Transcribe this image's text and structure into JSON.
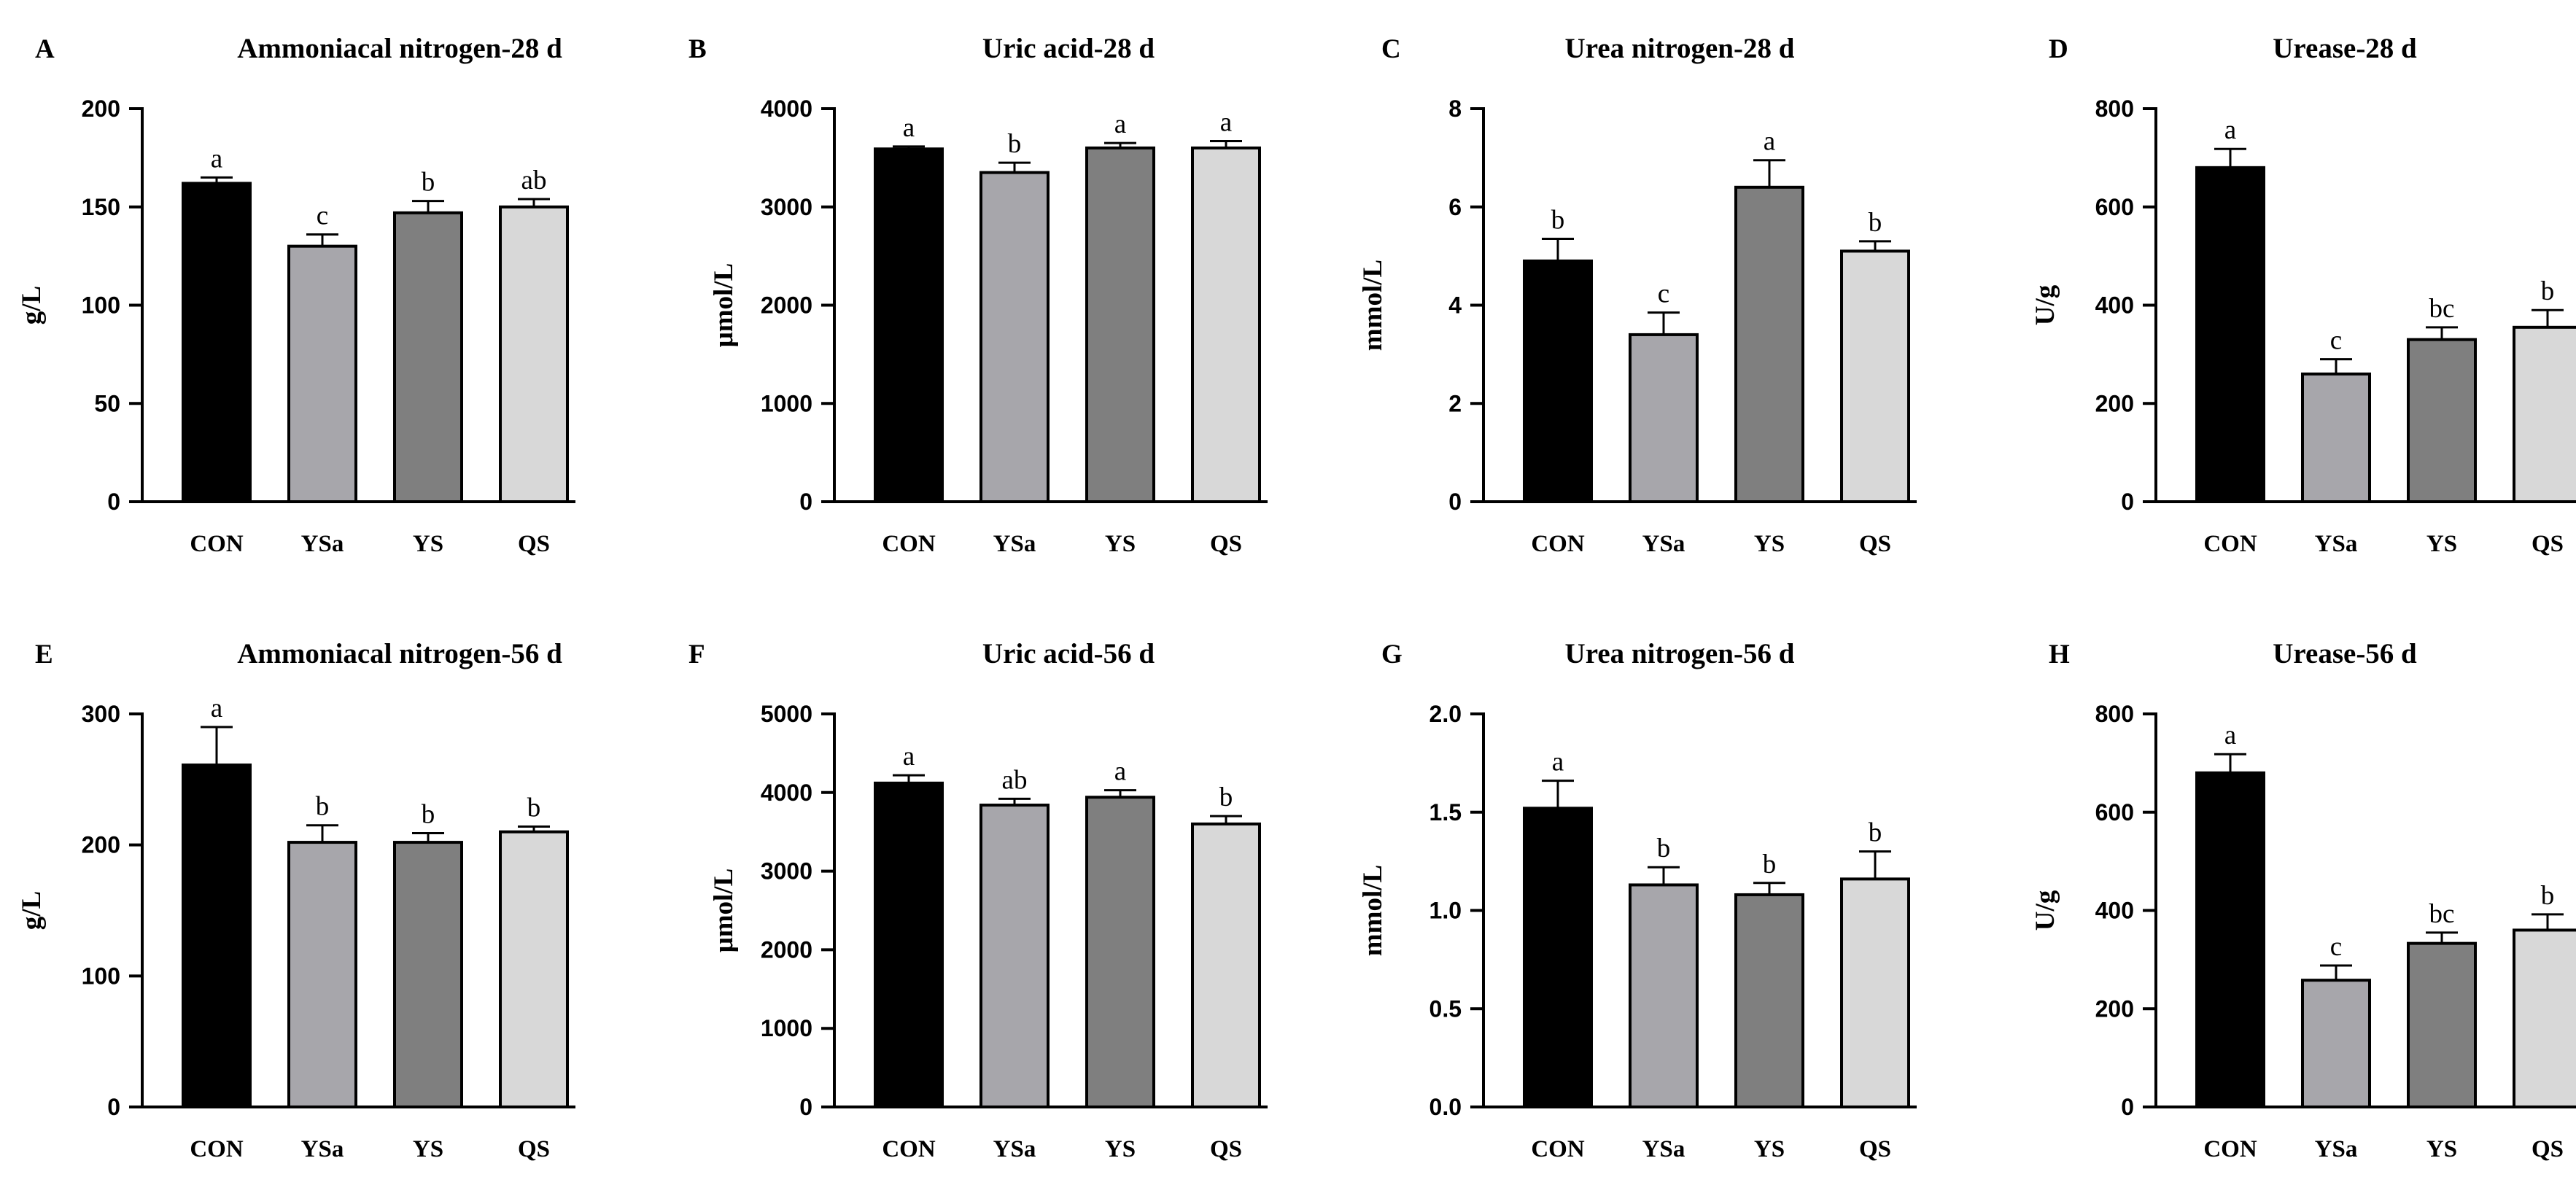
{
  "colors": {
    "CON": "#000000",
    "YSa": "#a7a6ab",
    "YS": "#7f7f7f",
    "QS": "#d8d8d8"
  },
  "chart_data": [
    {
      "type": "bar",
      "letter": "A",
      "title": "Ammoniacal nitrogen-28 d",
      "xlabel": "",
      "ylabel": "g/L",
      "categories": [
        "CON",
        "YSa",
        "YS",
        "QS"
      ],
      "values": [
        162,
        130,
        147,
        150
      ],
      "errors": [
        3,
        6,
        6,
        4
      ],
      "significance": [
        "a",
        "c",
        "b",
        "ab"
      ],
      "ylim": [
        0,
        200
      ],
      "yticks": [
        0,
        50,
        100,
        150,
        200
      ],
      "ytick_labels": [
        "0",
        "50",
        "100",
        "150",
        "200"
      ]
    },
    {
      "type": "bar",
      "letter": "B",
      "title": "Uric acid-28 d",
      "xlabel": "",
      "ylabel": "μmol/L",
      "categories": [
        "CON",
        "YSa",
        "YS",
        "QS"
      ],
      "values": [
        3590,
        3350,
        3600,
        3600
      ],
      "errors": [
        25,
        100,
        50,
        70
      ],
      "significance": [
        "a",
        "b",
        "a",
        "a"
      ],
      "ylim": [
        0,
        4000
      ],
      "yticks": [
        0,
        1000,
        2000,
        3000,
        4000
      ],
      "ytick_labels": [
        "0",
        "1000",
        "2000",
        "3000",
        "4000"
      ]
    },
    {
      "type": "bar",
      "letter": "C",
      "title": "Urea nitrogen-28 d",
      "xlabel": "",
      "ylabel": "mmol/L",
      "categories": [
        "CON",
        "YSa",
        "YS",
        "QS"
      ],
      "values": [
        4.9,
        3.4,
        6.4,
        5.1
      ],
      "errors": [
        0.45,
        0.45,
        0.55,
        0.2
      ],
      "significance": [
        "b",
        "c",
        "a",
        "b"
      ],
      "ylim": [
        0,
        8
      ],
      "yticks": [
        0,
        2,
        4,
        6,
        8
      ],
      "ytick_labels": [
        "0",
        "2",
        "4",
        "6",
        "8"
      ]
    },
    {
      "type": "bar",
      "letter": "D",
      "title": "Urease-28 d",
      "xlabel": "",
      "ylabel": "U/g",
      "categories": [
        "CON",
        "YSa",
        "YS",
        "QS"
      ],
      "values": [
        680,
        260,
        330,
        355
      ],
      "errors": [
        38,
        30,
        25,
        35
      ],
      "significance": [
        "a",
        "c",
        "bc",
        "b"
      ],
      "ylim": [
        0,
        800
      ],
      "yticks": [
        0,
        200,
        400,
        600,
        800
      ],
      "ytick_labels": [
        "0",
        "200",
        "400",
        "600",
        "800"
      ]
    },
    {
      "type": "bar",
      "letter": "E",
      "title": "Ammoniacal nitrogen-56 d",
      "xlabel": "",
      "ylabel": "g/L",
      "categories": [
        "CON",
        "YSa",
        "YS",
        "QS"
      ],
      "values": [
        261,
        202,
        202,
        210
      ],
      "errors": [
        29,
        13,
        7,
        4
      ],
      "significance": [
        "a",
        "b",
        "b",
        "b"
      ],
      "ylim": [
        0,
        300
      ],
      "yticks": [
        0,
        100,
        200,
        300
      ],
      "ytick_labels": [
        "0",
        "100",
        "200",
        "300"
      ]
    },
    {
      "type": "bar",
      "letter": "F",
      "title": "Uric acid-56 d",
      "xlabel": "",
      "ylabel": "μmol/L",
      "categories": [
        "CON",
        "YSa",
        "YS",
        "QS"
      ],
      "values": [
        4120,
        3840,
        3940,
        3600
      ],
      "errors": [
        100,
        80,
        90,
        100
      ],
      "significance": [
        "a",
        "ab",
        "a",
        "b"
      ],
      "ylim": [
        0,
        5000
      ],
      "yticks": [
        0,
        1000,
        2000,
        3000,
        4000,
        5000
      ],
      "ytick_labels": [
        "0",
        "1000",
        "2000",
        "3000",
        "4000",
        "5000"
      ]
    },
    {
      "type": "bar",
      "letter": "G",
      "title": "Urea nitrogen-56 d",
      "xlabel": "",
      "ylabel": "mmol/L",
      "categories": [
        "CON",
        "YSa",
        "YS",
        "QS"
      ],
      "values": [
        1.52,
        1.13,
        1.08,
        1.16
      ],
      "errors": [
        0.14,
        0.09,
        0.06,
        0.14
      ],
      "significance": [
        "a",
        "b",
        "b",
        "b"
      ],
      "ylim": [
        0,
        2
      ],
      "yticks": [
        0,
        0.5,
        1,
        1.5,
        2
      ],
      "ytick_labels": [
        "0.0",
        "0.5",
        "1.0",
        "1.5",
        "2.0"
      ]
    },
    {
      "type": "bar",
      "letter": "H",
      "title": "Urease-56 d",
      "xlabel": "",
      "ylabel": "U/g",
      "categories": [
        "CON",
        "YSa",
        "YS",
        "QS"
      ],
      "values": [
        680,
        258,
        333,
        360
      ],
      "errors": [
        38,
        30,
        22,
        32
      ],
      "significance": [
        "a",
        "c",
        "bc",
        "b"
      ],
      "ylim": [
        0,
        800
      ],
      "yticks": [
        0,
        200,
        400,
        600,
        800
      ],
      "ytick_labels": [
        "0",
        "200",
        "400",
        "600",
        "800"
      ]
    }
  ]
}
